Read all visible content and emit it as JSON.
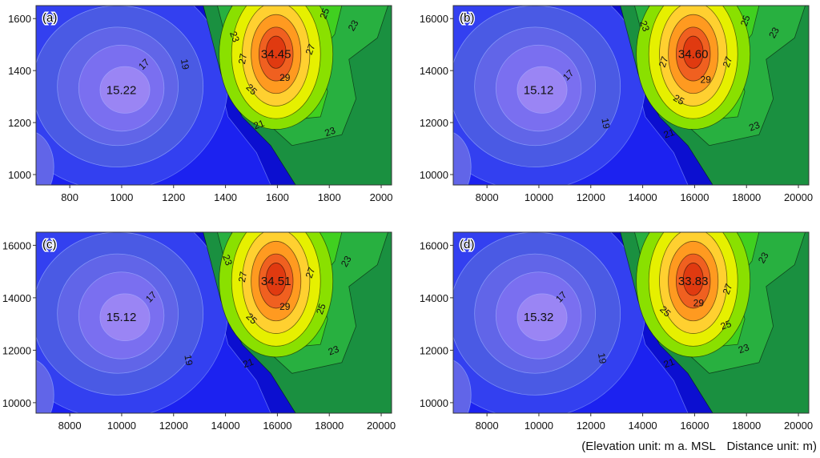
{
  "chart_data": [
    {
      "type": "heatmap",
      "panel_label": "(a)",
      "x_ticks": [
        800,
        1000,
        1200,
        1400,
        1600,
        1800,
        2000
      ],
      "y_ticks": [
        1000,
        1200,
        1400,
        1600
      ],
      "xlim": [
        670,
        2040
      ],
      "ylim": [
        960,
        1650
      ],
      "min_value": "15.22",
      "max_value": "34.45",
      "contour_labels": [
        "17",
        "19",
        "21",
        "23",
        "23",
        "23",
        "25",
        "25",
        "27",
        "27",
        "29"
      ],
      "colorscale": [
        "#0c0fd0",
        "#1c22f0",
        "#3340f0",
        "#4a5ae4",
        "#6165e8",
        "#7a6ff0",
        "#9a85f4",
        "#1a9040",
        "#28b040",
        "#40d020",
        "#8ae000",
        "#e6f000",
        "#ffd030",
        "#ff9a20",
        "#f06020",
        "#e03a10"
      ]
    },
    {
      "type": "heatmap",
      "panel_label": "(b)",
      "x_ticks": [
        8000,
        10000,
        12000,
        14000,
        16000,
        18000,
        20000
      ],
      "y_ticks": [
        10000,
        12000,
        14000,
        16000
      ],
      "xlim": [
        6700,
        20400
      ],
      "ylim": [
        9600,
        16500
      ],
      "min_value": "15.12",
      "max_value": "34.60",
      "contour_labels": [
        "17",
        "19",
        "21",
        "23",
        "23",
        "23",
        "25",
        "25",
        "27",
        "27",
        "29"
      ],
      "colorscale": [
        "#0c0fd0",
        "#1c22f0",
        "#3340f0",
        "#4a5ae4",
        "#6165e8",
        "#7a6ff0",
        "#9a85f4",
        "#1a9040",
        "#28b040",
        "#40d020",
        "#8ae000",
        "#e6f000",
        "#ffd030",
        "#ff9a20",
        "#f06020",
        "#e03a10"
      ]
    },
    {
      "type": "heatmap",
      "panel_label": "(c)",
      "x_ticks": [
        8000,
        10000,
        12000,
        14000,
        16000,
        18000,
        20000
      ],
      "y_ticks": [
        10000,
        12000,
        14000,
        16000
      ],
      "xlim": [
        6700,
        20400
      ],
      "ylim": [
        9600,
        16500
      ],
      "min_value": "15.12",
      "max_value": "34.51",
      "contour_labels": [
        "17",
        "19",
        "21",
        "23",
        "23",
        "23",
        "25",
        "25",
        "27",
        "27",
        "29"
      ],
      "colorscale": [
        "#0c0fd0",
        "#1c22f0",
        "#3340f0",
        "#4a5ae4",
        "#6165e8",
        "#7a6ff0",
        "#9a85f4",
        "#1a9040",
        "#28b040",
        "#40d020",
        "#8ae000",
        "#e6f000",
        "#ffd030",
        "#ff9a20",
        "#f06020",
        "#e03a10"
      ]
    },
    {
      "type": "heatmap",
      "panel_label": "(d)",
      "x_ticks": [
        8000,
        10000,
        12000,
        14000,
        16000,
        18000,
        20000
      ],
      "y_ticks": [
        10000,
        12000,
        14000,
        16000
      ],
      "xlim": [
        6700,
        20400
      ],
      "ylim": [
        9600,
        16500
      ],
      "min_value": "15.32",
      "max_value": "33.83",
      "contour_labels": [
        "17",
        "19",
        "21",
        "23",
        "23",
        "25",
        "25",
        "27",
        "29"
      ],
      "colorscale": [
        "#0c0fd0",
        "#1c22f0",
        "#3340f0",
        "#4a5ae4",
        "#6165e8",
        "#7a6ff0",
        "#9a85f4",
        "#1a9040",
        "#28b040",
        "#40d020",
        "#8ae000",
        "#e6f000",
        "#ffd030",
        "#ff9a20",
        "#f06020",
        "#e03a10"
      ]
    }
  ],
  "footnote": {
    "elevation_unit": "(Elevation unit: m a. MSL",
    "distance_unit": "Distance unit: m)"
  }
}
